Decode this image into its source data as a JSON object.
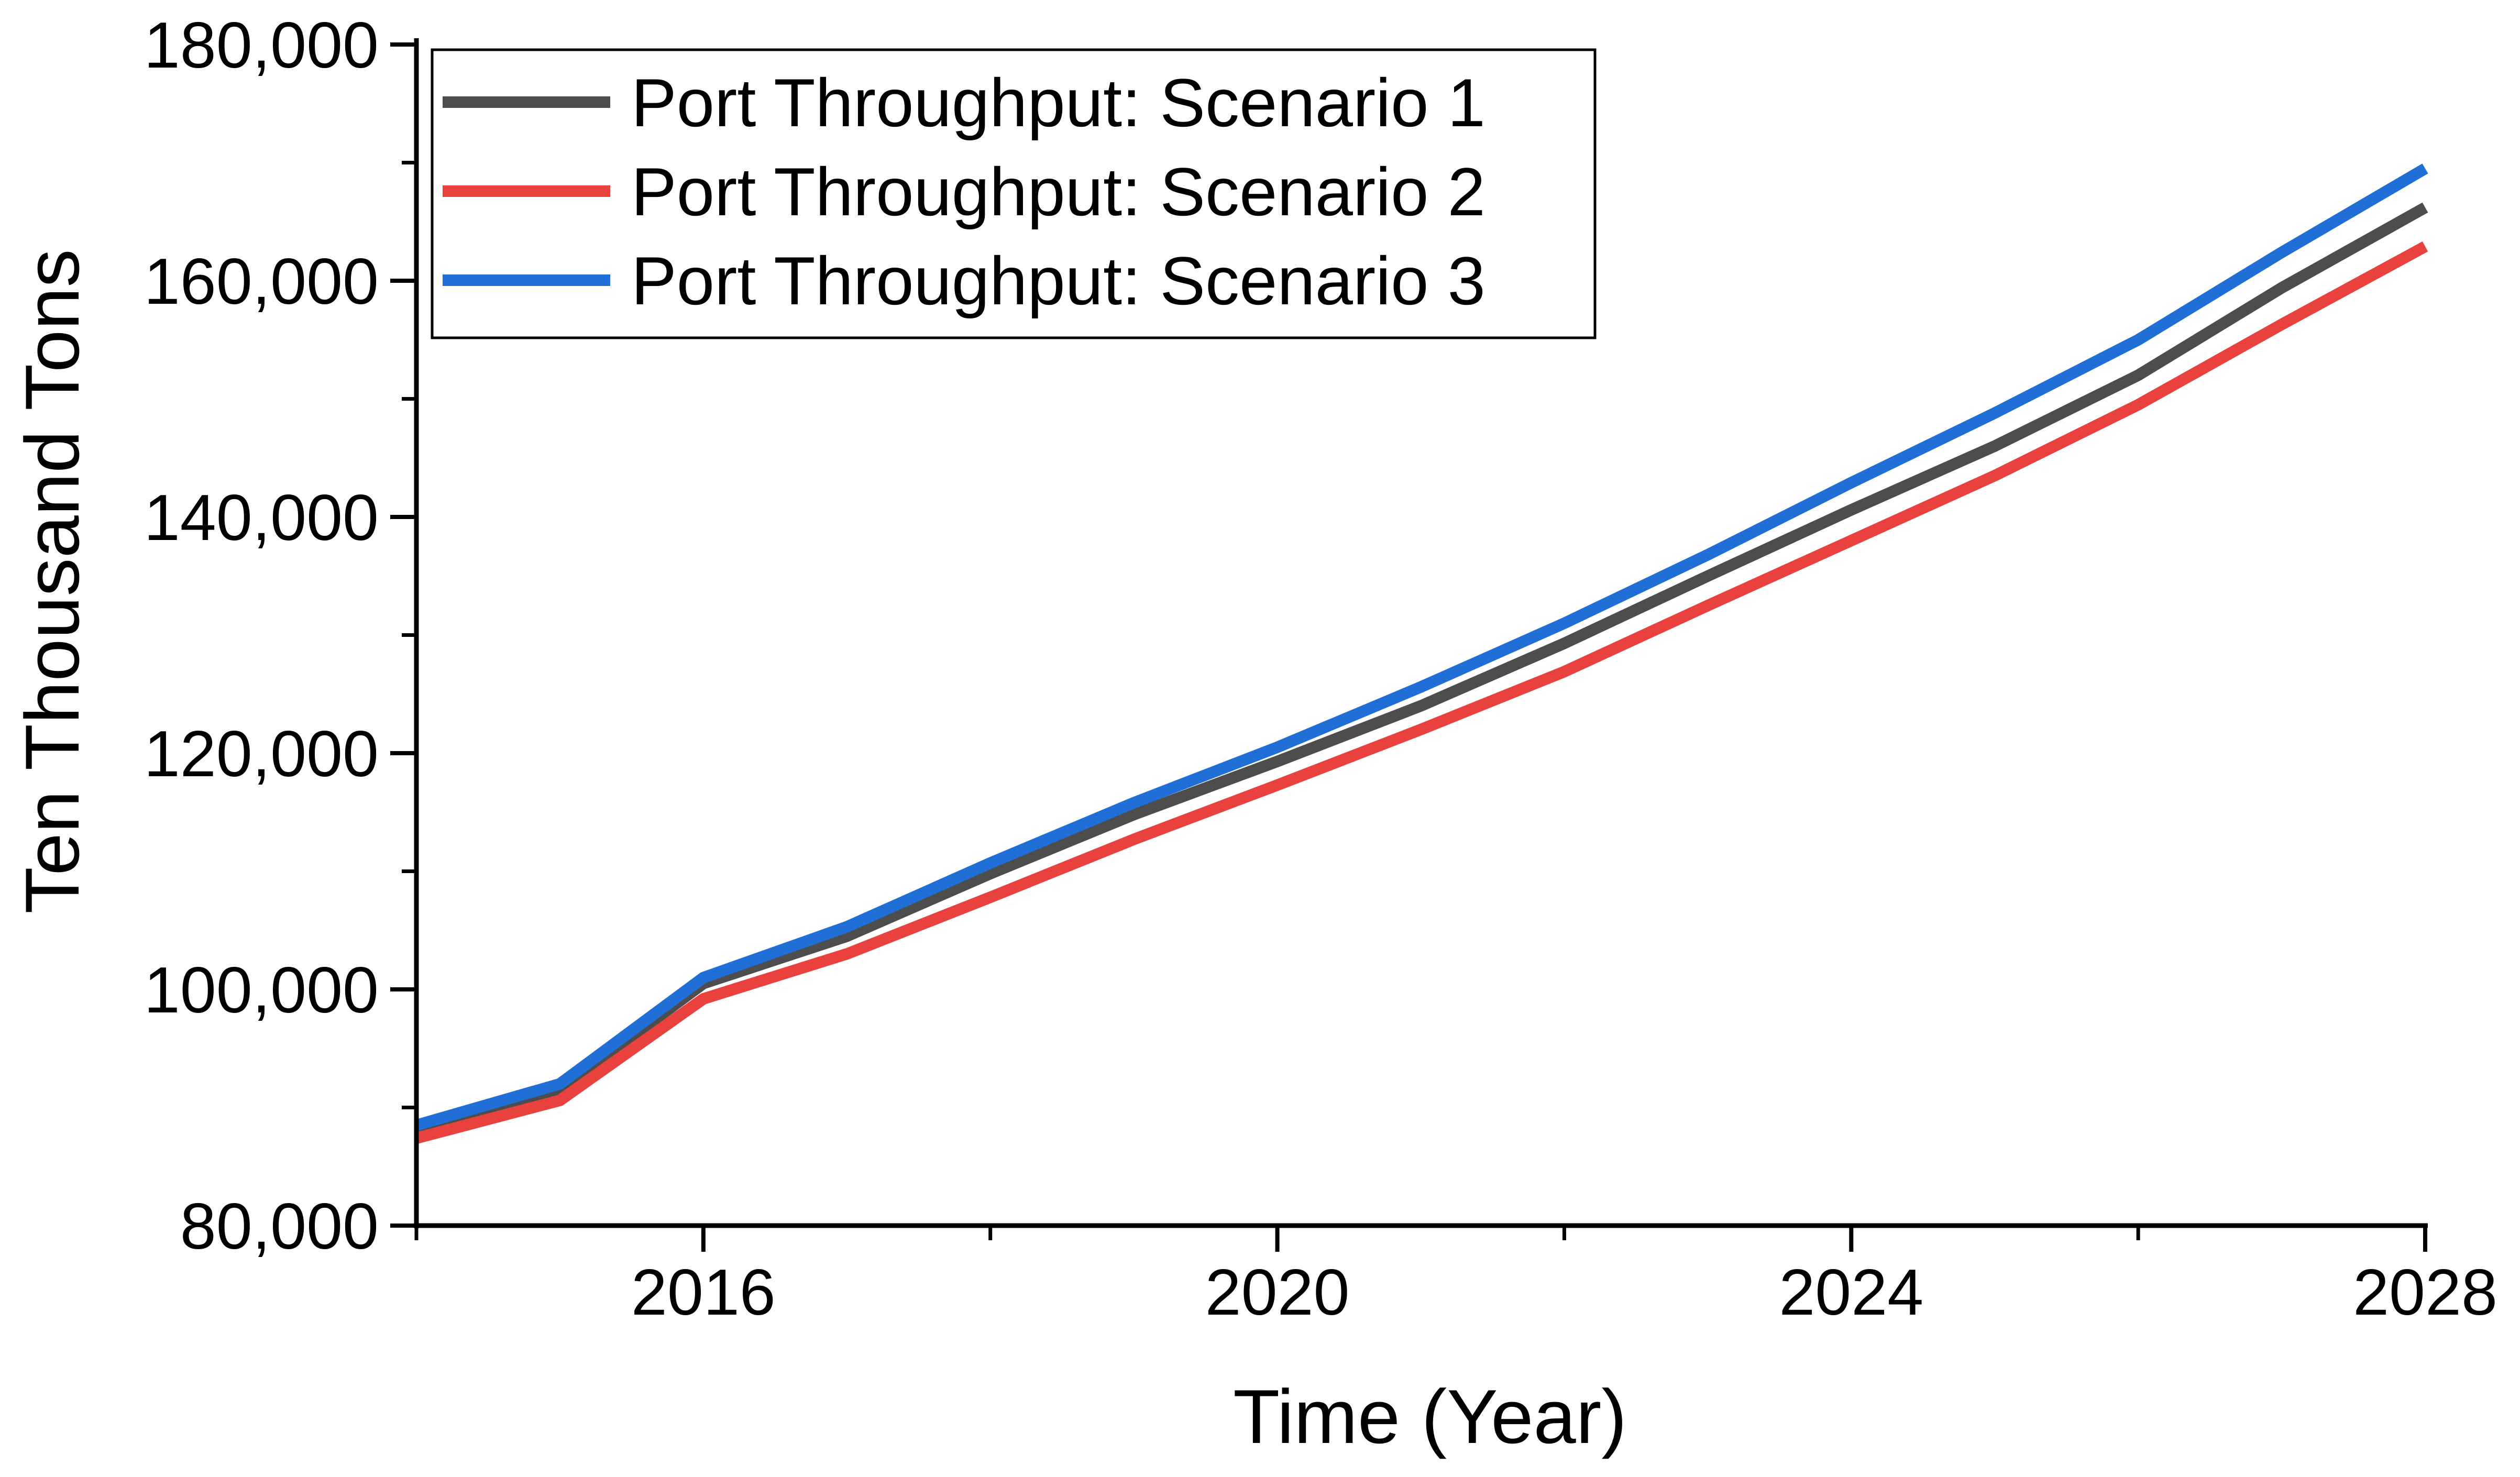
{
  "chart_data": {
    "type": "line",
    "title": "",
    "xlabel": "Time (Year)",
    "ylabel": "Ten Thousand Tons",
    "xlim": [
      2014,
      2028
    ],
    "ylim": [
      80000,
      180000
    ],
    "x_ticks": [
      2016,
      2020,
      2024,
      2028
    ],
    "x_tick_labels": [
      "2016",
      "2020",
      "2024",
      "2028"
    ],
    "x_minor_ticks": [
      2014,
      2018,
      2022,
      2026
    ],
    "y_ticks": [
      80000,
      100000,
      120000,
      140000,
      160000,
      180000
    ],
    "y_tick_labels": [
      "80,000",
      "100,000",
      "120,000",
      "140,000",
      "160,000",
      "180,000"
    ],
    "y_minor_ticks": [
      90000,
      110000,
      130000,
      150000,
      170000
    ],
    "grid": false,
    "legend_position": "top-left",
    "x": [
      2014,
      2015,
      2016,
      2017,
      2018,
      2019,
      2020,
      2021,
      2022,
      2023,
      2024,
      2025,
      2026,
      2027,
      2028
    ],
    "series": [
      {
        "name": "Port Throughput: Scenario 1",
        "color": "#4d4d4d",
        "values": [
          88000,
          91500,
          100500,
          104500,
          109800,
          114800,
          119300,
          124000,
          129300,
          135000,
          140600,
          146000,
          152000,
          159400,
          166200
        ]
      },
      {
        "name": "Port Throughput: Scenario 2",
        "color": "#e8413e",
        "values": [
          87400,
          90600,
          99200,
          103000,
          107800,
          112700,
          117300,
          122000,
          126900,
          132500,
          138000,
          143500,
          149500,
          156300,
          162900
        ]
      },
      {
        "name": "Port Throughput: Scenario 3",
        "color": "#1f6fd6",
        "values": [
          88500,
          92000,
          101000,
          105300,
          110700,
          115800,
          120500,
          125600,
          131000,
          136800,
          142900,
          148800,
          155000,
          162400,
          169500
        ]
      }
    ]
  }
}
